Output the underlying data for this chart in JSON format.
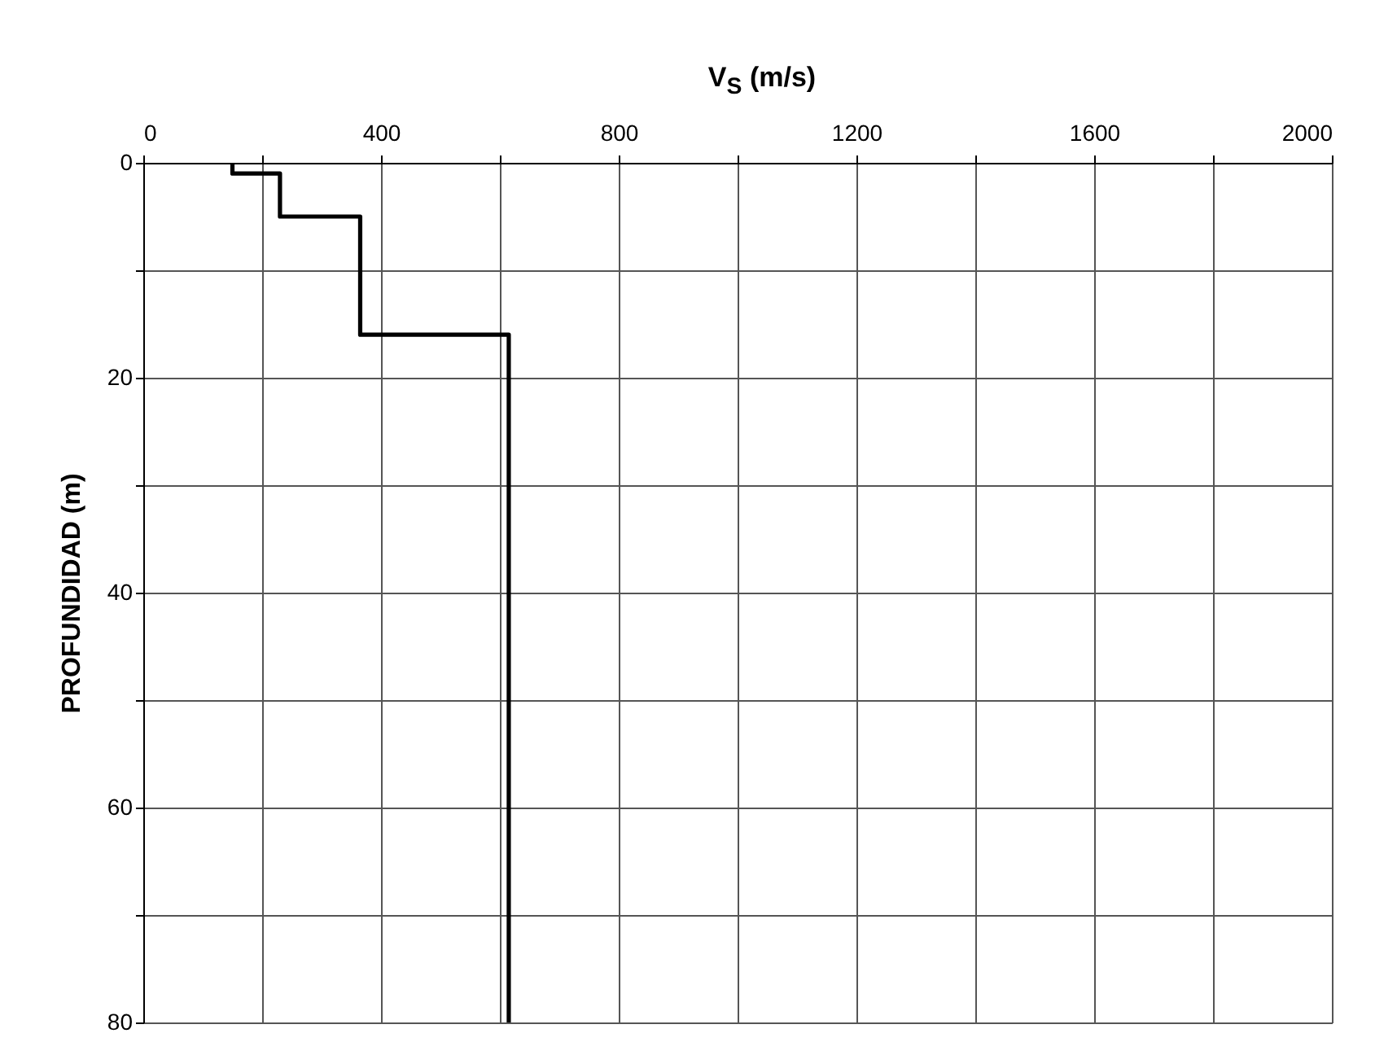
{
  "chart_data": {
    "type": "line",
    "xlabel": "V$_{S}$ (m/s)",
    "ylabel": "PROFUNDIDAD (m)",
    "x": [
      150,
      150,
      230,
      230,
      365,
      365,
      615,
      615
    ],
    "series": [
      {
        "color": "#000000",
        "values": [
          0,
          1,
          1,
          5,
          5,
          16,
          16,
          80
        ]
      }
    ],
    "xlim": [
      0,
      2000
    ],
    "xticks": [
      0,
      {
        "value": 200,
        "label": null
      },
      400,
      {
        "value": 600,
        "label": null
      },
      800,
      {
        "value": 1000,
        "label": null
      },
      1200,
      {
        "value": 1400,
        "label": null
      },
      1600,
      {
        "value": 1800,
        "label": null
      },
      2000
    ],
    "ylim": [
      80,
      0
    ],
    "yticks": [
      0,
      {
        "value": 10,
        "label": null
      },
      20,
      {
        "value": 30,
        "label": null
      },
      40,
      {
        "value": 50,
        "label": null
      },
      60,
      {
        "value": 70,
        "label": null
      },
      80
    ],
    "grid": true,
    "line_style": "solid",
    "marker": "none"
  }
}
